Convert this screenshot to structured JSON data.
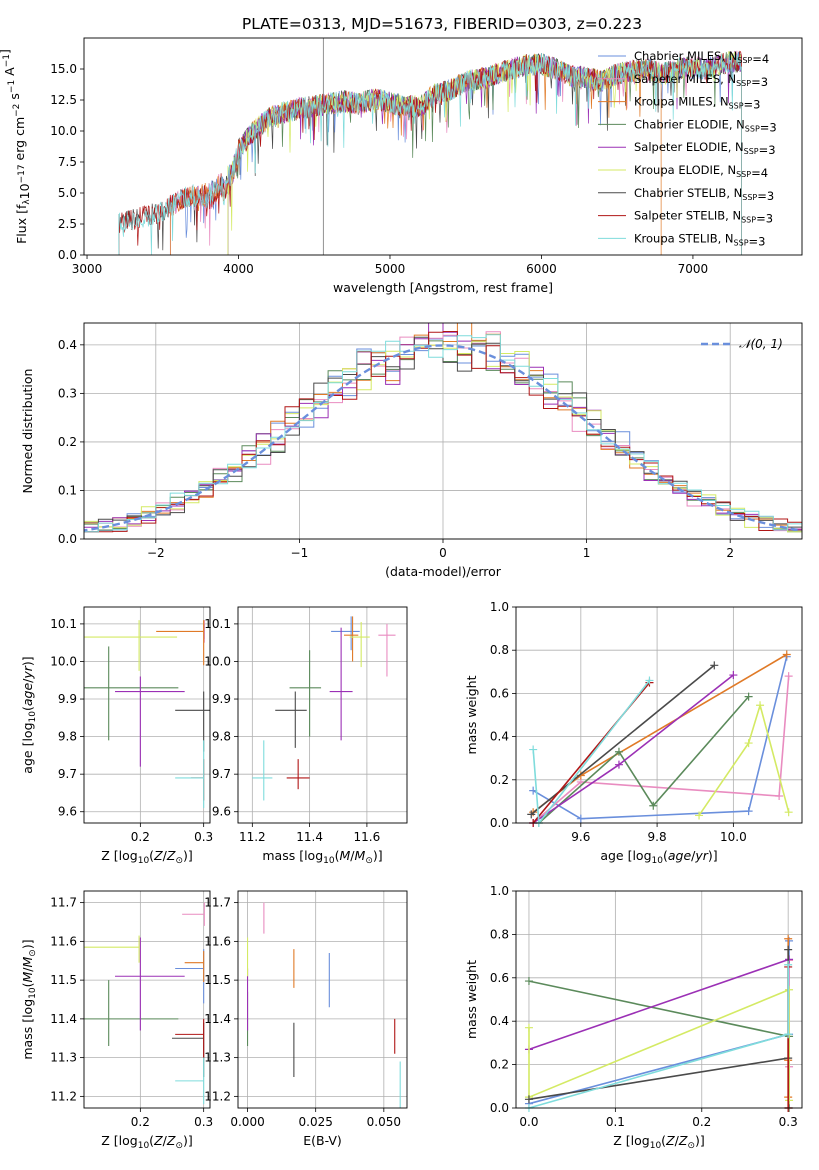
{
  "title": "PLATE=0313, MJD=51673, FIBERID=0303, z=0.223",
  "colors": [
    "#6a8fdc",
    "#e98cc0",
    "#e07a27",
    "#5b8a5b",
    "#9b30b5",
    "#d4ea64",
    "#4a4a4a",
    "#b01616",
    "#7fdcdc"
  ],
  "series_names": [
    "Chabrier MILES, N<sub>SSP</sub>=4",
    "Salpeter MILES, N<sub>SSP</sub>=3",
    "Kroupa MILES, N<sub>SSP</sub>=3",
    "Chabrier ELODIE, N<sub>SSP</sub>=3",
    "Salpeter ELODIE, N<sub>SSP</sub>=3",
    "Kroupa ELODIE, N<sub>SSP</sub>=4",
    "Chabrier STELIB, N<sub>SSP</sub>=3",
    "Salpeter STELIB, N<sub>SSP</sub>=3",
    "Kroupa STELIB, N<sub>SSP</sub>=3"
  ],
  "chart_data": [
    {
      "id": "spectrum",
      "type": "line",
      "xlabel": "wavelength [Angstrom, rest frame]",
      "ylabel": "Flux [f<sub>λ</sub>10<sup>−17</sup> erg cm<sup>−2</sup> s<sup>−1</sup> A<sup>−1</sup>]",
      "xlim": [
        2980,
        7720
      ],
      "ylim": [
        0,
        17.5
      ],
      "xticks": [
        3000,
        4000,
        5000,
        6000,
        7000
      ],
      "yticks": [
        0.0,
        2.5,
        5.0,
        7.5,
        10.0,
        12.5,
        15.0
      ],
      "grid": false,
      "legend": "right",
      "continuum": {
        "x": [
          3210,
          3300,
          3400,
          3500,
          3600,
          3700,
          3800,
          3900,
          3950,
          4000,
          4100,
          4200,
          4300,
          4400,
          4500,
          4600,
          4700,
          4800,
          4900,
          5000,
          5100,
          5200,
          5300,
          5400,
          5500,
          5600,
          5700,
          5800,
          5900,
          6000,
          6100,
          6200,
          6300,
          6400,
          6500,
          6600,
          6700,
          6800,
          6900,
          7000,
          7100,
          7200,
          7300,
          7360
        ],
        "y": [
          2.6,
          2.9,
          3.1,
          3.6,
          4.3,
          4.9,
          5.4,
          6.0,
          6.8,
          8.5,
          10.0,
          11.0,
          11.5,
          11.8,
          12.0,
          12.2,
          12.4,
          12.2,
          12.6,
          12.3,
          12.0,
          12.0,
          13.0,
          13.3,
          14.0,
          14.2,
          14.6,
          15.0,
          15.3,
          15.4,
          15.0,
          14.4,
          14.3,
          14.0,
          14.6,
          14.8,
          15.0,
          14.6,
          15.0,
          15.2,
          15.0,
          15.5,
          15.6,
          15.6
        ]
      },
      "series_ranges": [
        [
          3550,
          7320
        ],
        [
          3550,
          7320
        ],
        [
          3550,
          6790
        ],
        [
          3930,
          7320
        ],
        [
          3930,
          7320
        ],
        [
          3930,
          7320
        ],
        [
          3210,
          7320
        ],
        [
          3210,
          7320
        ],
        [
          3210,
          7320
        ]
      ]
    },
    {
      "id": "residuals",
      "type": "line",
      "xlabel": "(data-model)/error",
      "ylabel": "Normed distribution",
      "xlim": [
        -2.5,
        2.5
      ],
      "ylim": [
        0,
        0.445
      ],
      "xticks": [
        -2,
        -1,
        0,
        1,
        2
      ],
      "yticks": [
        0.0,
        0.1,
        0.2,
        0.3,
        0.4
      ],
      "grid": true,
      "legend": "top-right",
      "gaussian_label": "𝒩(0, 1)",
      "bin_width": 0.1
    },
    {
      "id": "age_vs_Z",
      "type": "scatter",
      "xlabel": "Z [log<tspan font-size='9' dy='3'>10</tspan><tspan dy='-3'>(</tspan><tspan font-style='italic'>Z</tspan>/<tspan font-style='italic'>Z</tspan><tspan font-size='9' dy='3'>⊙</tspan><tspan dy='-3'>)]</tspan>",
      "ylabel": "age  [log<tspan font-size='9' dy='3'>10</tspan><tspan dy='-3'>(</tspan><tspan font-style='italic'>age</tspan>/<tspan font-style='italic'>yr</tspan>)]",
      "xlim": [
        0.111,
        0.31
      ],
      "ylim": [
        9.57,
        10.145
      ],
      "xticks": [
        0.2,
        0.3
      ],
      "xticklabels": [
        "0.2",
        "0.3"
      ],
      "yticks": [
        9.6,
        9.7,
        9.8,
        9.9,
        10.0,
        10.1
      ],
      "points": [
        {
          "s": 0,
          "x": 0.301,
          "y": 10.08,
          "xerr": [
            0,
            0.0
          ],
          "yerr": [
            0.02,
            0.02
          ]
        },
        {
          "s": 1,
          "x": 0.301,
          "y": 10.08,
          "xerr": [
            0,
            0
          ],
          "yerr": [
            0.03,
            0.03
          ]
        },
        {
          "s": 2,
          "x": 0.3,
          "y": 10.08,
          "xerr": [
            0.075,
            0.0
          ],
          "yerr": [
            0.09,
            0.03
          ]
        },
        {
          "s": 3,
          "x": 0.15,
          "y": 9.93,
          "xerr": [
            0.04,
            0.11
          ],
          "yerr": [
            0.14,
            0.11
          ]
        },
        {
          "s": 4,
          "x": 0.2,
          "y": 9.92,
          "xerr": [
            0.04,
            0.07
          ],
          "yerr": [
            0.2,
            0.04
          ]
        },
        {
          "s": 5,
          "x": 0.198,
          "y": 10.065,
          "xerr": [
            0.087,
            0.06
          ],
          "yerr": [
            0.09,
            0.045
          ]
        },
        {
          "s": 6,
          "x": 0.3,
          "y": 9.87,
          "xerr": [
            0.045,
            0.01
          ],
          "yerr": [
            0.11,
            0.05
          ]
        },
        {
          "s": 7,
          "x": 0.3,
          "y": 9.69,
          "xerr": [
            0.02,
            0.0
          ],
          "yerr": [
            0.06,
            0.05
          ]
        },
        {
          "s": 8,
          "x": 0.3,
          "y": 9.69,
          "xerr": [
            0.045,
            0.0
          ],
          "yerr": [
            0.08,
            0.1
          ]
        }
      ]
    },
    {
      "id": "age_vs_mass",
      "type": "scatter",
      "xlabel": "mass [log<tspan font-size='9' dy='3'>10</tspan><tspan dy='-3'>(</tspan><tspan font-style='italic'>M</tspan>/<tspan font-style='italic'>M</tspan><tspan font-size='9' dy='3'>⊙</tspan><tspan dy='-3'>)]</tspan>",
      "ylabel": "",
      "xlim": [
        11.15,
        11.74
      ],
      "ylim": [
        9.57,
        10.145
      ],
      "xticks": [
        11.2,
        11.4,
        11.6
      ],
      "xticklabels": [
        "11.2",
        "11.4",
        "11.6"
      ],
      "yticks": [
        9.6,
        9.7,
        9.8,
        9.9,
        10.0,
        10.1
      ],
      "points": [
        {
          "s": 0,
          "x": 11.545,
          "y": 10.08,
          "xerr": [
            0.07,
            0.03
          ],
          "yerr": [
            0.05,
            0.04
          ]
        },
        {
          "s": 1,
          "x": 11.67,
          "y": 10.07,
          "xerr": [
            0.03,
            0.03
          ],
          "yerr": [
            0.11,
            0.03
          ]
        },
        {
          "s": 2,
          "x": 11.55,
          "y": 10.07,
          "xerr": [
            0.03,
            0.02
          ],
          "yerr": [
            0.07,
            0.05
          ]
        },
        {
          "s": 3,
          "x": 11.4,
          "y": 9.93,
          "xerr": [
            0.07,
            0.04
          ],
          "yerr": [
            0.13,
            0.1
          ]
        },
        {
          "s": 4,
          "x": 11.51,
          "y": 9.92,
          "xerr": [
            0.04,
            0.04
          ],
          "yerr": [
            0.13,
            0.17
          ]
        },
        {
          "s": 5,
          "x": 11.58,
          "y": 10.065,
          "xerr": [
            0.04,
            0.03
          ],
          "yerr": [
            0.08,
            0.04
          ]
        },
        {
          "s": 6,
          "x": 11.35,
          "y": 9.87,
          "xerr": [
            0.07,
            0.04
          ],
          "yerr": [
            0.1,
            0.05
          ]
        },
        {
          "s": 7,
          "x": 11.36,
          "y": 9.69,
          "xerr": [
            0.04,
            0.04
          ],
          "yerr": [
            0.03,
            0.05
          ]
        },
        {
          "s": 8,
          "x": 11.24,
          "y": 9.69,
          "xerr": [
            0.04,
            0.03
          ],
          "yerr": [
            0.06,
            0.1
          ]
        }
      ]
    },
    {
      "id": "weight_vs_age",
      "type": "line",
      "xlabel": "age  [log<tspan font-size='9' dy='3'>10</tspan><tspan dy='-3'>(</tspan><tspan font-style='italic'>age</tspan>/<tspan font-style='italic'>yr</tspan>)]",
      "ylabel": "mass weight",
      "xlim": [
        9.43,
        10.18
      ],
      "ylim": [
        0,
        1.0
      ],
      "xticks": [
        9.6,
        9.8,
        10.0
      ],
      "xticklabels": [
        "9.6",
        "9.8",
        "10.0"
      ],
      "yticks": [
        0.0,
        0.2,
        0.4,
        0.6,
        0.8,
        1.0
      ],
      "lines": [
        {
          "s": 0,
          "x": [
            9.475,
            9.6,
            10.04,
            10.14
          ],
          "y": [
            0.15,
            0.02,
            0.055,
            0.77
          ]
        },
        {
          "s": 1,
          "x": [
            9.475,
            9.6,
            10.12,
            10.145
          ],
          "y": [
            0.0,
            0.19,
            0.125,
            0.68
          ]
        },
        {
          "s": 2,
          "x": [
            9.475,
            9.6,
            10.14
          ],
          "y": [
            0.05,
            0.22,
            0.78
          ]
        },
        {
          "s": 3,
          "x": [
            9.49,
            9.7,
            9.79,
            10.04
          ],
          "y": [
            0.0,
            0.33,
            0.08,
            0.585
          ]
        },
        {
          "s": 4,
          "x": [
            9.475,
            9.7,
            10.0
          ],
          "y": [
            0.0,
            0.27,
            0.685
          ]
        },
        {
          "s": 5,
          "x": [
            9.91,
            10.04,
            10.07,
            10.145
          ],
          "y": [
            0.035,
            0.37,
            0.545,
            0.05
          ]
        },
        {
          "s": 6,
          "x": [
            9.47,
            9.95
          ],
          "y": [
            0.04,
            0.73
          ]
        },
        {
          "s": 7,
          "x": [
            9.475,
            9.78
          ],
          "y": [
            0.0,
            0.65
          ]
        },
        {
          "s": 8,
          "x": [
            9.475,
            9.49,
            9.78
          ],
          "y": [
            0.34,
            0.0,
            0.66
          ]
        }
      ]
    },
    {
      "id": "mass_vs_Z",
      "type": "scatter",
      "xlabel": "Z [log<tspan font-size='9' dy='3'>10</tspan><tspan dy='-3'>(</tspan><tspan font-style='italic'>Z</tspan>/<tspan font-style='italic'>Z</tspan><tspan font-size='9' dy='3'>⊙</tspan><tspan dy='-3'>)]</tspan>",
      "ylabel": "mass [log<tspan font-size='9' dy='3'>10</tspan><tspan dy='-3'>(</tspan><tspan font-style='italic'>M</tspan>/<tspan font-style='italic'>M</tspan><tspan font-size='9' dy='3'>⊙</tspan><tspan dy='-3'>)]</tspan>",
      "xlim": [
        0.111,
        0.31
      ],
      "ylim": [
        11.17,
        11.73
      ],
      "xticks": [
        0.2,
        0.3
      ],
      "xticklabels": [
        "0.2",
        "0.3"
      ],
      "yticks": [
        11.2,
        11.3,
        11.4,
        11.5,
        11.6,
        11.7
      ],
      "points": [
        {
          "s": 0,
          "x": 0.3,
          "y": 11.53,
          "xerr": [
            0.045,
            0.0
          ],
          "yerr": [
            0.09,
            0.05
          ]
        },
        {
          "s": 1,
          "x": 0.301,
          "y": 11.67,
          "xerr": [
            0.035,
            0.0
          ],
          "yerr": [
            0.03,
            0.03
          ]
        },
        {
          "s": 2,
          "x": 0.3,
          "y": 11.545,
          "xerr": [
            0.03,
            0.0
          ],
          "yerr": [
            0.05,
            0.03
          ]
        },
        {
          "s": 3,
          "x": 0.15,
          "y": 11.4,
          "xerr": [
            0.04,
            0.11
          ],
          "yerr": [
            0.07,
            0.1
          ]
        },
        {
          "s": 4,
          "x": 0.2,
          "y": 11.51,
          "xerr": [
            0.04,
            0.07
          ],
          "yerr": [
            0.14,
            0.1
          ]
        },
        {
          "s": 5,
          "x": 0.198,
          "y": 11.585,
          "xerr": [
            0.087,
            0.0
          ],
          "yerr": [
            0.04,
            0.03
          ]
        },
        {
          "s": 6,
          "x": 0.3,
          "y": 11.35,
          "xerr": [
            0.05,
            0.0
          ],
          "yerr": [
            0.1,
            0.04
          ]
        },
        {
          "s": 7,
          "x": 0.3,
          "y": 11.36,
          "xerr": [
            0.045,
            0.0
          ],
          "yerr": [
            0.06,
            0.04
          ]
        },
        {
          "s": 8,
          "x": 0.3,
          "y": 11.24,
          "xerr": [
            0.045,
            0.0
          ],
          "yerr": [
            0.06,
            0.06
          ]
        }
      ]
    },
    {
      "id": "mass_vs_ebv",
      "type": "scatter",
      "xlabel": "E(B-V)",
      "ylabel": "",
      "xlim": [
        -0.0035,
        0.0585
      ],
      "ylim": [
        11.17,
        11.73
      ],
      "xticks": [
        0.0,
        0.025,
        0.05
      ],
      "xticklabels": [
        "0.000",
        "0.025",
        "0.050"
      ],
      "yticks": [
        11.2,
        11.3,
        11.4,
        11.5,
        11.6,
        11.7
      ],
      "points": [
        {
          "s": 0,
          "x": 0.03,
          "y": 11.5,
          "xerr": [
            0,
            0
          ],
          "yerr": [
            0.07,
            0.07
          ]
        },
        {
          "s": 1,
          "x": 0.006,
          "y": 11.66,
          "xerr": [
            0,
            0
          ],
          "yerr": [
            0.04,
            0.04
          ]
        },
        {
          "s": 2,
          "x": 0.017,
          "y": 11.53,
          "xerr": [
            0,
            0
          ],
          "yerr": [
            0.05,
            0.05
          ]
        },
        {
          "s": 3,
          "x": 0.0,
          "y": 11.4,
          "xerr": [
            0,
            0
          ],
          "yerr": [
            0.07,
            0.07
          ]
        },
        {
          "s": 4,
          "x": 0.0,
          "y": 11.45,
          "xerr": [
            0,
            0
          ],
          "yerr": [
            0.08,
            0.08
          ]
        },
        {
          "s": 5,
          "x": 0.0,
          "y": 11.56,
          "xerr": [
            0,
            0
          ],
          "yerr": [
            0.05,
            0.05
          ]
        },
        {
          "s": 6,
          "x": 0.017,
          "y": 11.32,
          "xerr": [
            0,
            0
          ],
          "yerr": [
            0.07,
            0.07
          ]
        },
        {
          "s": 7,
          "x": 0.054,
          "y": 11.355,
          "xerr": [
            0,
            0
          ],
          "yerr": [
            0.045,
            0.045
          ]
        },
        {
          "s": 8,
          "x": 0.056,
          "y": 11.23,
          "xerr": [
            0,
            0
          ],
          "yerr": [
            0.06,
            0.06
          ]
        }
      ]
    },
    {
      "id": "weight_vs_Z",
      "type": "line",
      "xlabel": "Z [log<tspan font-size='9' dy='3'>10</tspan><tspan dy='-3'>(</tspan><tspan font-style='italic'>Z</tspan>/<tspan font-style='italic'>Z</tspan><tspan font-size='9' dy='3'>⊙</tspan><tspan dy='-3'>)]</tspan>",
      "ylabel": "mass weight",
      "xlim": [
        -0.015,
        0.316
      ],
      "ylim": [
        0,
        1.0
      ],
      "xticks": [
        0.0,
        0.1,
        0.2,
        0.3
      ],
      "xticklabels": [
        "0.0",
        "0.1",
        "0.2",
        "0.3"
      ],
      "yticks": [
        0.0,
        0.2,
        0.4,
        0.6,
        0.8,
        1.0
      ],
      "lines": [
        {
          "s": 0,
          "x": [
            0.0,
            0.301,
            0.301
          ],
          "y": [
            0.02,
            0.34,
            0.77
          ]
        },
        {
          "s": 1,
          "x": [
            0.301,
            0.301,
            0.301
          ],
          "y": [
            0.0,
            0.19,
            0.68
          ]
        },
        {
          "s": 2,
          "x": [
            0.3,
            0.3,
            0.3
          ],
          "y": [
            0.05,
            0.22,
            0.78
          ]
        },
        {
          "s": 3,
          "x": [
            0.0,
            0.301,
            0.301
          ],
          "y": [
            0.585,
            0.33,
            0.0
          ]
        },
        {
          "s": 4,
          "x": [
            0.0,
            0.301
          ],
          "y": [
            0.27,
            0.685
          ]
        },
        {
          "s": 5,
          "x": [
            0.0,
            0.0,
            0.301,
            0.301
          ],
          "y": [
            0.37,
            0.05,
            0.545,
            0.035
          ]
        },
        {
          "s": 6,
          "x": [
            0.0,
            0.3,
            0.3
          ],
          "y": [
            0.04,
            0.23,
            0.73
          ]
        },
        {
          "s": 7,
          "x": [
            0.3,
            0.3
          ],
          "y": [
            0.0,
            0.65
          ]
        },
        {
          "s": 8,
          "x": [
            0.0,
            0.3,
            0.3
          ],
          "y": [
            0.0,
            0.34,
            0.66
          ]
        }
      ]
    }
  ]
}
